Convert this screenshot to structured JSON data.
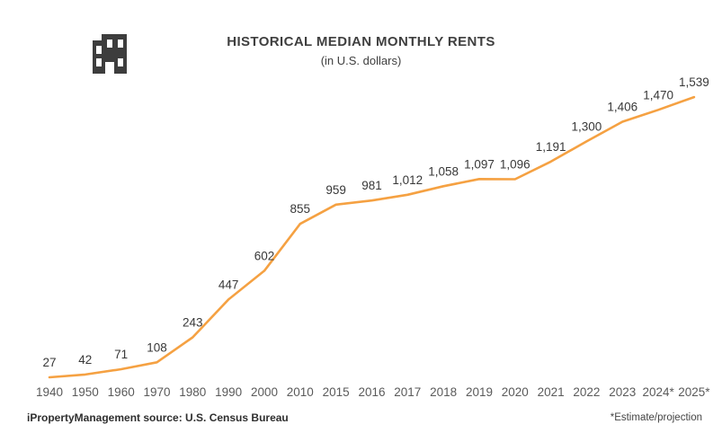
{
  "header": {
    "title": "HISTORICAL MEDIAN MONTHLY RENTS",
    "subtitle": "(in U.S. dollars)",
    "logo_icon": "building-icon"
  },
  "chart_data": {
    "type": "line",
    "title": "HISTORICAL MEDIAN MONTHLY RENTS",
    "subtitle": "(in U.S. dollars)",
    "categories": [
      "1940",
      "1950",
      "1960",
      "1970",
      "1980",
      "1990",
      "2000",
      "2010",
      "2015",
      "2016",
      "2017",
      "2018",
      "2019",
      "2020",
      "2021",
      "2022",
      "2023",
      "2024*",
      "2025*"
    ],
    "values": [
      27,
      42,
      71,
      108,
      243,
      447,
      602,
      855,
      959,
      981,
      1012,
      1058,
      1097,
      1096,
      1191,
      1300,
      1406,
      1470,
      1539
    ],
    "point_labels": [
      "27",
      "42",
      "71",
      "108",
      "243",
      "447",
      "602",
      "855",
      "959",
      "981",
      "1,012",
      "1,058",
      "1,097",
      "1,096",
      "1,191",
      "1,300",
      "1,406",
      "1,470",
      "1,539"
    ],
    "xlabel": "",
    "ylabel": "",
    "ylim": [
      0,
      1600
    ],
    "grid": false,
    "legend_position": "none",
    "line_color": "#F5A142"
  },
  "footer": {
    "source": "iPropertyManagement source: U.S. Census Bureau",
    "note": "*Estimate/projection"
  },
  "colors": {
    "line": "#F5A142",
    "title_text": "#3f3f3f",
    "axis_text": "#5a5a5a",
    "label_text": "#383838",
    "logo": "#3d3d3d",
    "background": "#ffffff"
  }
}
